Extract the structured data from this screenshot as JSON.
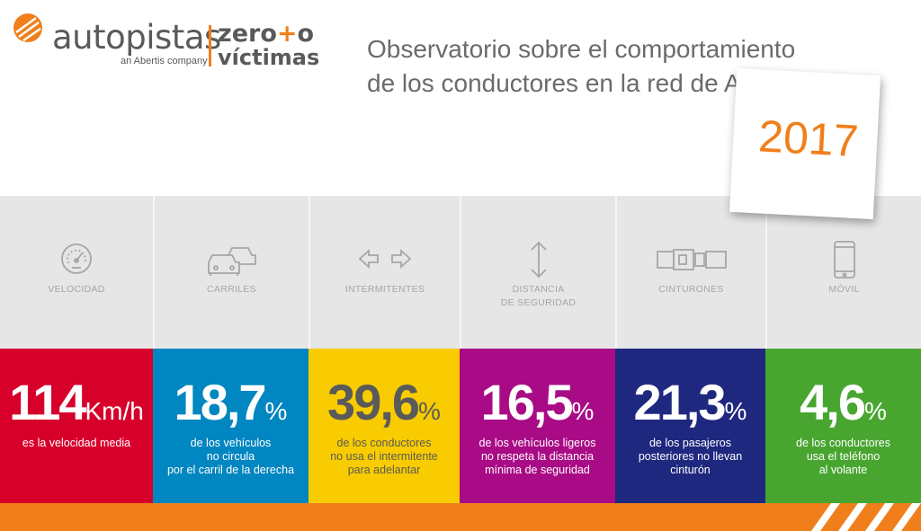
{
  "header": {
    "logo": {
      "word": "autopistas",
      "sub": "an Abertis company",
      "zero": "zero",
      "plus": "+",
      "o": "o",
      "victimas": "víctimas"
    },
    "title_line1": "Observatorio sobre el comportamiento",
    "title_line2": "de los conductores en la red de Autopistas",
    "year": "2017"
  },
  "colors": {
    "orange": "#f07f1b",
    "red": "#d6002b",
    "blue": "#0086c0",
    "yellow": "#f8cc00",
    "magenta": "#a90b86",
    "navy": "#1f287f",
    "green": "#48a630",
    "grey": "#e6e6e6"
  },
  "categories": [
    {
      "icon": "speedometer-icon",
      "label1": "VELOCIDAD",
      "label2": ""
    },
    {
      "icon": "cars-icon",
      "label1": "CARRILES",
      "label2": ""
    },
    {
      "icon": "arrows-icon",
      "label1": "INTERMITENTES",
      "label2": ""
    },
    {
      "icon": "vertical-arrow-icon",
      "label1": "DISTANCIA",
      "label2": "DE SEGURIDAD"
    },
    {
      "icon": "seatbelt-icon",
      "label1": "CINTURONES",
      "label2": ""
    },
    {
      "icon": "phone-icon",
      "label1": "MÓVIL",
      "label2": ""
    }
  ],
  "stats": [
    {
      "value": "114",
      "unit": "Km/h",
      "line1": "es la velocidad media",
      "line2": "",
      "line3": ""
    },
    {
      "value": "18,7",
      "unit": "%",
      "line1": "de los vehículos",
      "line2": "no circula",
      "line3": "por el carril de la derecha"
    },
    {
      "value": "39,6",
      "unit": "%",
      "line1": "de los conductores",
      "line2": "no usa el intermitente",
      "line3": "para adelantar"
    },
    {
      "value": "16,5",
      "unit": "%",
      "line1": "de los vehículos ligeros",
      "line2": "no respeta la distancia",
      "line3": "mínima de seguridad"
    },
    {
      "value": "21,3",
      "unit": "%",
      "line1": "de los pasajeros",
      "line2": "posteriores no llevan",
      "line3": "cinturón"
    },
    {
      "value": "4,6",
      "unit": "%",
      "line1": "de los conductores",
      "line2": "usa el teléfono",
      "line3": "al volante"
    }
  ]
}
